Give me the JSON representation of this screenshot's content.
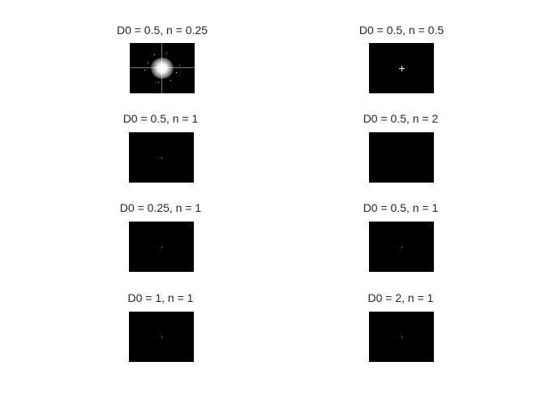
{
  "panels": [
    {
      "id": "p1",
      "title": "D0 = 0.5, n = 0.25",
      "D0": 0.5,
      "n": 0.25
    },
    {
      "id": "p2",
      "title": "D0 = 0.5, n = 0.5",
      "D0": 0.5,
      "n": 0.5
    },
    {
      "id": "p3",
      "title": "D0 = 0.5, n = 1",
      "D0": 0.5,
      "n": 1
    },
    {
      "id": "p4",
      "title": "D0 = 0.5, n = 2",
      "D0": 0.5,
      "n": 2
    },
    {
      "id": "p5",
      "title": "D0 = 0.25, n = 1",
      "D0": 0.25,
      "n": 1
    },
    {
      "id": "p6",
      "title": "D0 = 0.5, n = 1",
      "D0": 0.5,
      "n": 1
    },
    {
      "id": "p7",
      "title": "D0 = 1, n = 1",
      "D0": 1,
      "n": 1
    },
    {
      "id": "p8",
      "title": "D0 = 2, n = 1",
      "D0": 2,
      "n": 1
    }
  ],
  "colors": {
    "background": "#ffffff",
    "panel": "#000000",
    "title_text": "#262626"
  }
}
